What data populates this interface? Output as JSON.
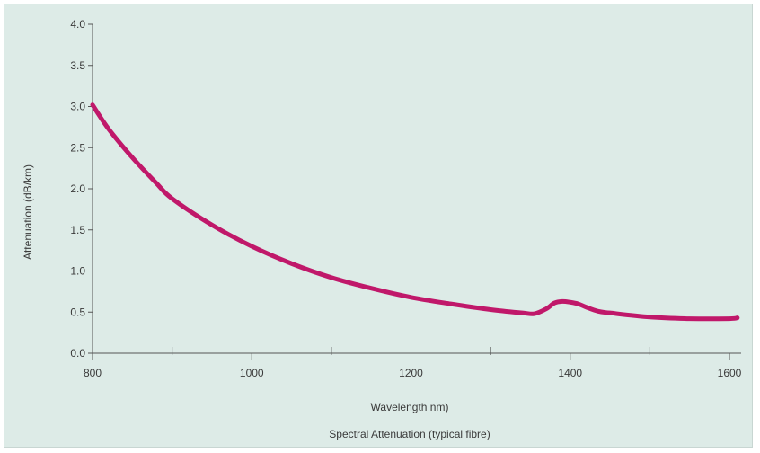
{
  "chart_data": {
    "type": "line",
    "title": "Spectral Attenuation (typical fibre)",
    "xlabel": "Wavelength nm)",
    "ylabel": "Attenuation (dB/km)",
    "xlim": [
      800,
      1610
    ],
    "ylim": [
      0,
      4.0
    ],
    "x_ticks": [
      800,
      1000,
      1200,
      1400,
      1600
    ],
    "x_tick_labels": [
      "800",
      "1000",
      "1200",
      "1400",
      "1600"
    ],
    "x_minor_ticks": [
      900,
      1100,
      1300,
      1500
    ],
    "y_ticks": [
      0,
      0.5,
      1.0,
      1.5,
      2.0,
      2.5,
      3.0,
      3.5,
      4.0
    ],
    "y_tick_labels": [
      "0.0",
      "0.5",
      "1.0",
      "1.5",
      "2.0",
      "2.5",
      "3.0",
      "3.5",
      "4.0"
    ],
    "grid": false,
    "legend": "none",
    "series": [
      {
        "color": "#c0186a",
        "x": [
          800,
          820,
          850,
          880,
          900,
          950,
          1000,
          1050,
          1100,
          1150,
          1200,
          1250,
          1300,
          1340,
          1355,
          1370,
          1380,
          1390,
          1400,
          1410,
          1420,
          1435,
          1450,
          1500,
          1550,
          1600,
          1610
        ],
        "y": [
          3.02,
          2.73,
          2.38,
          2.07,
          1.88,
          1.56,
          1.3,
          1.09,
          0.92,
          0.79,
          0.68,
          0.6,
          0.53,
          0.49,
          0.48,
          0.54,
          0.61,
          0.63,
          0.62,
          0.6,
          0.56,
          0.51,
          0.49,
          0.44,
          0.42,
          0.42,
          0.43
        ]
      }
    ]
  }
}
